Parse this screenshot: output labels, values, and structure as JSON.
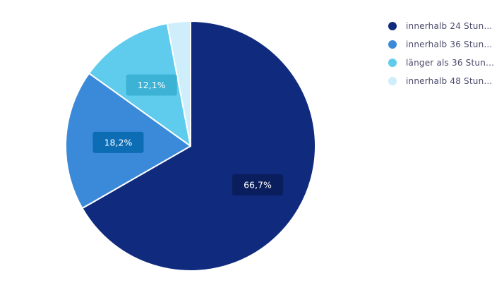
{
  "chart_data": {
    "type": "pie",
    "title": "",
    "slices": [
      {
        "label": "innerhalb 24 Stun…",
        "value": 66.7,
        "value_label": "66,7%",
        "color": "#102b7e",
        "label_bg": "#0a1e5e",
        "show_label": true
      },
      {
        "label": "innerhalb 36 Stun…",
        "value": 18.2,
        "value_label": "18,2%",
        "color": "#3b8ad9",
        "label_bg": "#0c6db5",
        "show_label": true
      },
      {
        "label": "länger als 36 Stun…",
        "value": 12.1,
        "value_label": "12,1%",
        "color": "#5fcced",
        "label_bg": "#3cb2d5",
        "show_label": true
      },
      {
        "label": "innerhalb 48 Stun…",
        "value": 3.0,
        "value_label": "",
        "color": "#cdeefa",
        "label_bg": "",
        "show_label": false
      }
    ],
    "legend_position": "top-right",
    "start_angle_deg": 0,
    "direction": "clockwise"
  }
}
